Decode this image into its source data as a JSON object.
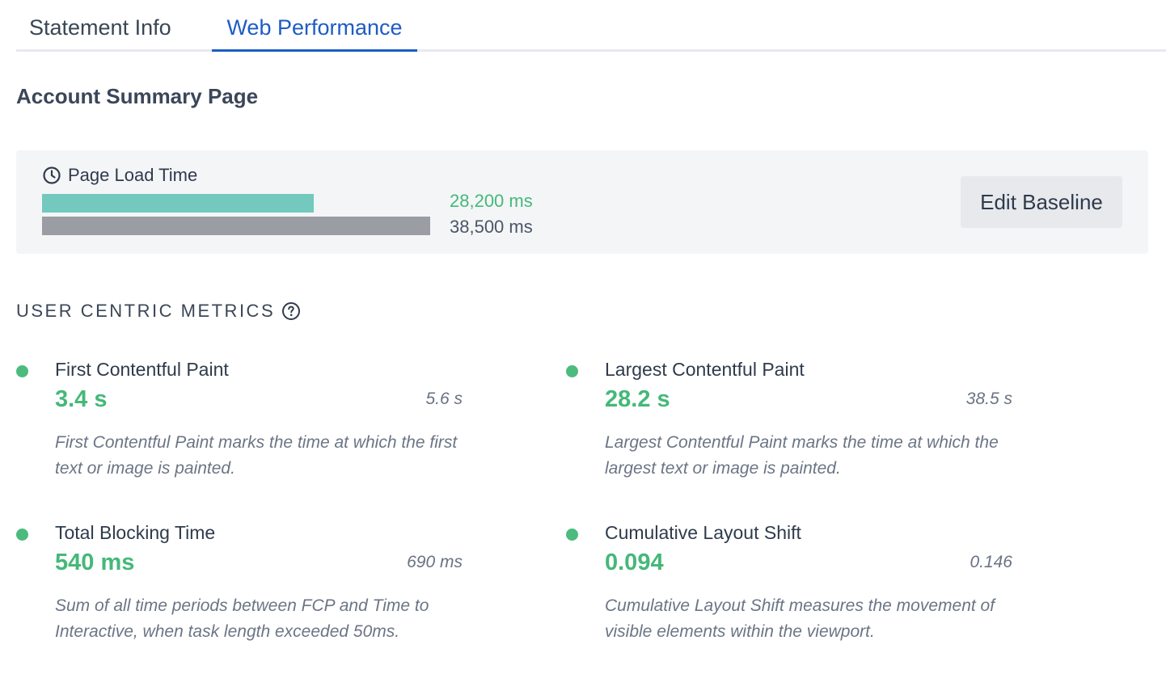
{
  "tabs": [
    {
      "label": "Statement Info",
      "active": false
    },
    {
      "label": "Web Performance",
      "active": true
    }
  ],
  "page_title": "Account Summary Page",
  "page_load": {
    "label": "Page Load Time",
    "icon": "clock-icon",
    "current": {
      "value_ms": 28200,
      "label": "28,200 ms",
      "color": "#73c9be"
    },
    "baseline": {
      "value_ms": 38500,
      "label": "38,500 ms",
      "color": "#9a9ea4"
    },
    "edit_button_label": "Edit Baseline"
  },
  "section": {
    "title": "USER CENTRIC METRICS",
    "icon": "help-circle-icon"
  },
  "metrics": [
    {
      "name": "First Contentful Paint",
      "value": "3.4 s",
      "baseline": "5.6 s",
      "description": "First Contentful Paint marks the time at which the first text or image is painted.",
      "status_color": "#4cbb7d"
    },
    {
      "name": "Largest Contentful Paint",
      "value": "28.2 s",
      "baseline": "38.5 s",
      "description": "Largest Contentful Paint marks the time at which the largest text or image is painted.",
      "status_color": "#4cbb7d"
    },
    {
      "name": "Total Blocking Time",
      "value": "540 ms",
      "baseline": "690 ms",
      "description": "Sum of all time periods between FCP and Time to Interactive, when task length exceeded 50ms.",
      "status_color": "#4cbb7d"
    },
    {
      "name": "Cumulative Layout Shift",
      "value": "0.094",
      "baseline": "0.146",
      "description": "Cumulative Layout Shift measures the movement of visible elements within the viewport.",
      "status_color": "#4cbb7d"
    }
  ],
  "colors": {
    "accent": "#1d5cc4",
    "good": "#45b879"
  }
}
